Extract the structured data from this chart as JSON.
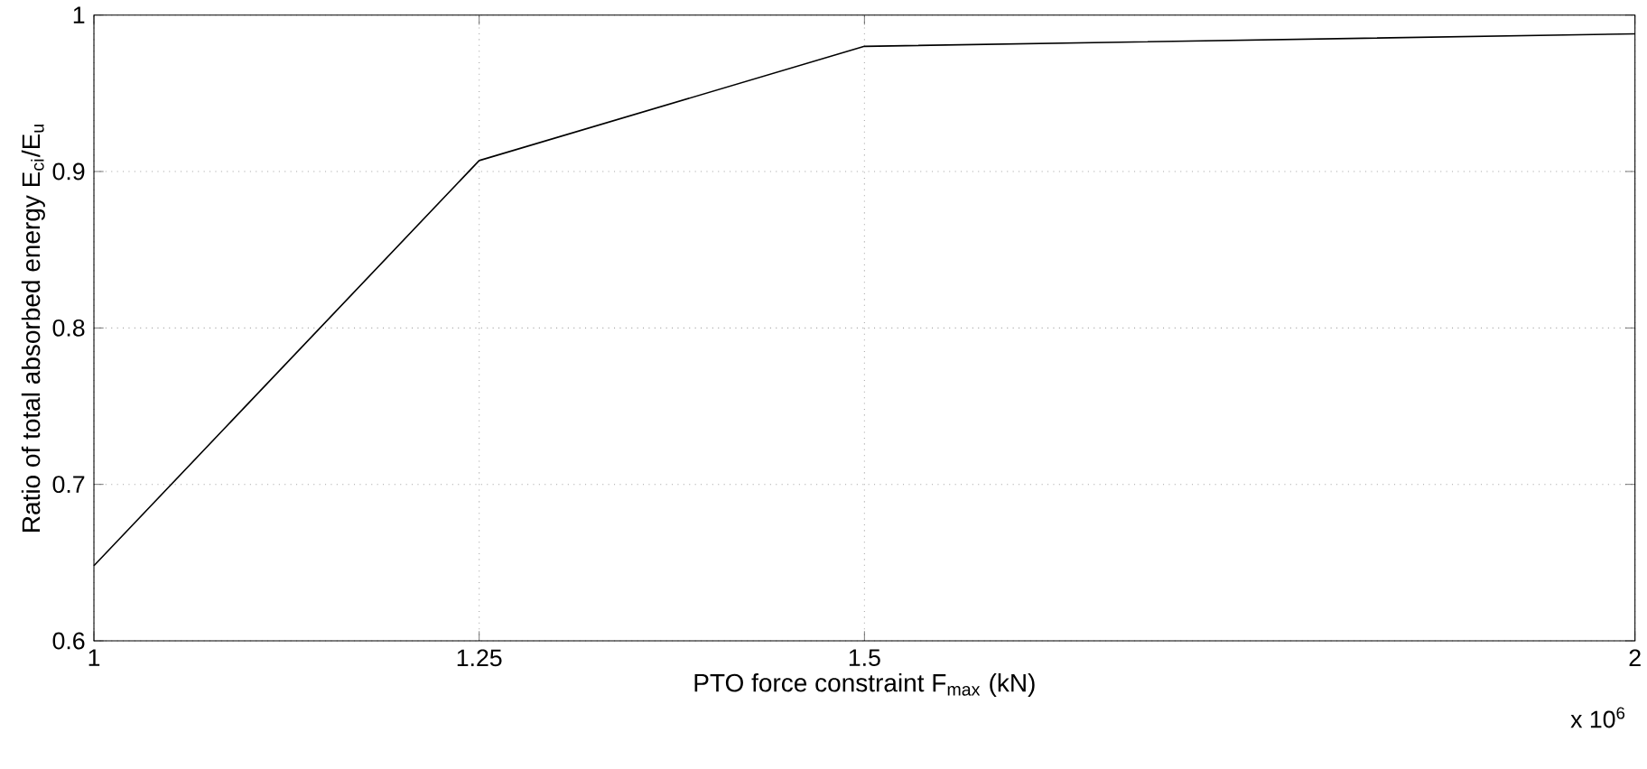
{
  "chart_data": {
    "type": "line",
    "xlabel": "PTO force constraint F$_{max}$ (kN)",
    "ylabel": "Ratio of total absorbed energy E$_{ci}$/E$_{u}$",
    "x": [
      1,
      1.25,
      1.5,
      2
    ],
    "series": [
      {
        "color": "#000000",
        "values": [
          0.648,
          0.907,
          0.98,
          0.988
        ]
      }
    ],
    "xlim": [
      1,
      2
    ],
    "xticks": [
      1,
      1.25,
      1.5,
      2
    ],
    "ylim": [
      0.6,
      1
    ],
    "yticks": [
      0.6,
      0.7,
      0.8,
      0.9,
      1
    ],
    "grid": true,
    "marker": "none",
    "line_style": "solid",
    "annotations": [
      "x 10$^{6}$"
    ]
  }
}
